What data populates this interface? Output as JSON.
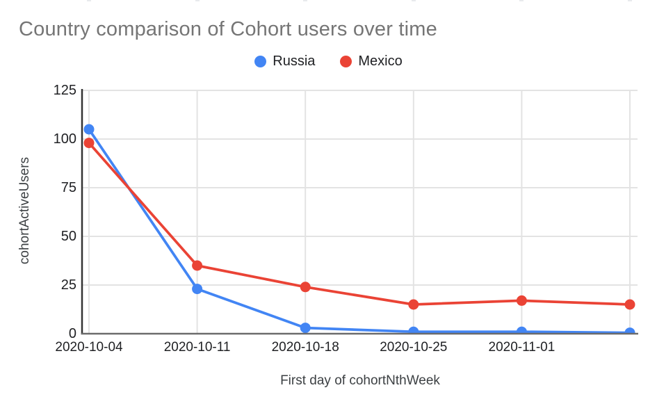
{
  "chart": {
    "title": "Country comparison of Cohort users over time",
    "xlabel": "First day of cohortNthWeek",
    "ylabel": "cohortActiveUsers"
  },
  "legend": {
    "items": [
      {
        "label": "Russia",
        "color": "#4285F4"
      },
      {
        "label": "Mexico",
        "color": "#EA4335"
      }
    ]
  },
  "chart_data": {
    "type": "line",
    "title": "Country comparison of Cohort users over time",
    "xlabel": "First day of cohortNthWeek",
    "ylabel": "cohortActiveUsers",
    "categories": [
      "2020-10-04",
      "2020-10-11",
      "2020-10-18",
      "2020-10-25",
      "2020-11-01",
      ""
    ],
    "series": [
      {
        "name": "Russia",
        "color": "#4285F4",
        "values": [
          105,
          23,
          3,
          1,
          1,
          0.5
        ]
      },
      {
        "name": "Mexico",
        "color": "#EA4335",
        "values": [
          98,
          35,
          24,
          15,
          17,
          15
        ]
      }
    ],
    "y_ticks": [
      0,
      25,
      50,
      75,
      100,
      125
    ],
    "ylim": [
      0,
      125
    ],
    "grid": true,
    "legend_position": "top",
    "marker": "circle"
  },
  "colors": {
    "title_text": "#757575",
    "tick_text": "#202124",
    "axis_title_text": "#3c4043",
    "gridline": "#e3e3e3",
    "y_axis_line": "#333333",
    "x_axis_line": "#6b6b6b",
    "series_russia": "#4285F4",
    "series_mexico": "#EA4335"
  }
}
